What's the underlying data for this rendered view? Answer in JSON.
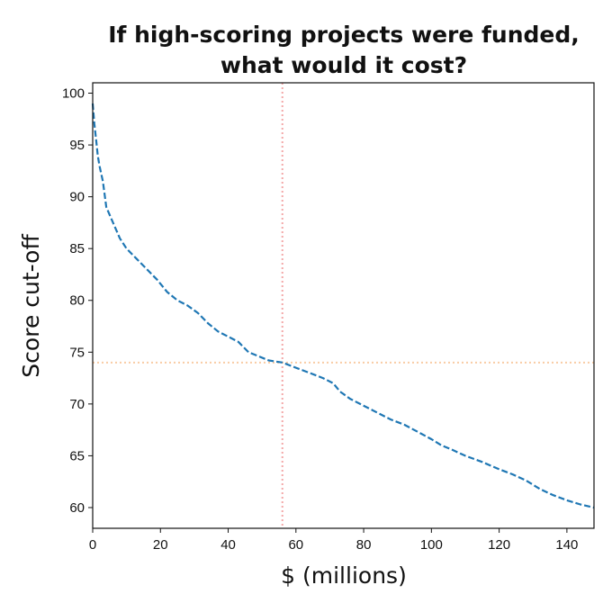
{
  "chart_data": {
    "type": "line",
    "title": [
      "If high-scoring projects were funded,",
      "what would it cost?"
    ],
    "xlabel": "$ (millions)",
    "ylabel": "Score cut-off",
    "xlim": [
      0,
      148
    ],
    "ylim": [
      58,
      101
    ],
    "xticks": [
      0,
      20,
      40,
      60,
      80,
      100,
      120,
      140
    ],
    "yticks": [
      60,
      65,
      70,
      75,
      80,
      85,
      90,
      95,
      100
    ],
    "grid": false,
    "series": [
      {
        "color": "#1f77b4",
        "style": "dashed",
        "x": [
          0,
          0.5,
          1,
          1.5,
          2,
          3,
          4,
          6,
          8,
          10,
          13,
          16,
          19,
          22,
          25,
          28,
          31,
          34,
          37,
          40,
          43,
          46,
          49,
          52,
          56,
          60,
          64,
          68,
          71,
          73,
          76,
          79,
          82,
          85,
          88,
          92,
          96,
          100,
          103,
          106,
          110,
          115,
          120,
          124,
          128,
          132,
          136,
          140,
          144,
          148
        ],
        "y": [
          99,
          97,
          95.5,
          94,
          93,
          91.5,
          89,
          87.5,
          86,
          85,
          84,
          83,
          82,
          80.8,
          80,
          79.5,
          78.8,
          77.8,
          77,
          76.5,
          76,
          75,
          74.6,
          74.2,
          74,
          73.5,
          73,
          72.5,
          72,
          71.2,
          70.5,
          70,
          69.5,
          69,
          68.5,
          68,
          67.3,
          66.6,
          66,
          65.6,
          65,
          64.4,
          63.7,
          63.2,
          62.6,
          61.8,
          61.2,
          60.7,
          60.3,
          60
        ]
      }
    ],
    "reference_lines": [
      {
        "orientation": "vertical",
        "value": 56,
        "color": "#f4a8a8",
        "style": "dotted"
      },
      {
        "orientation": "horizontal",
        "value": 74,
        "color": "#f9cca4",
        "style": "dotted"
      }
    ]
  }
}
